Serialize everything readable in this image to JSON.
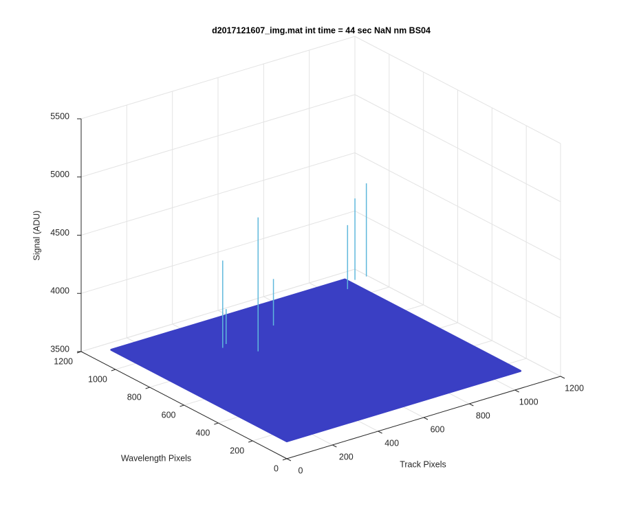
{
  "chart_data": {
    "type": "surface3d",
    "title": "d2017121607_img.mat int time = 44 sec  NaN nm BS04",
    "xlabel": "Track Pixels",
    "ylabel": "Wavelength Pixels",
    "zlabel": "Signal (ADU)",
    "xlim": [
      0,
      1200
    ],
    "xticks": [
      0,
      200,
      400,
      600,
      800,
      1000,
      1200
    ],
    "ylim": [
      0,
      1200
    ],
    "yticks": [
      0,
      200,
      400,
      600,
      800,
      1000,
      1200
    ],
    "zlim": [
      3500,
      5500
    ],
    "zticks": [
      3500,
      4000,
      4500,
      5000,
      5500
    ],
    "grid": true,
    "surface": {
      "x": [
        0,
        1024
      ],
      "y": [
        0,
        1024
      ],
      "z": 3650,
      "color": "#3a3fc4"
    },
    "spikes": {
      "color": "#5fb8dc",
      "x": [
        400,
        320,
        1100,
        1050,
        980,
        580,
        350
      ],
      "y": [
        700,
        800,
        1000,
        1000,
        950,
        850,
        820
      ],
      "z": [
        4800,
        4400,
        4450,
        4350,
        4200,
        4050,
        3950
      ]
    }
  }
}
